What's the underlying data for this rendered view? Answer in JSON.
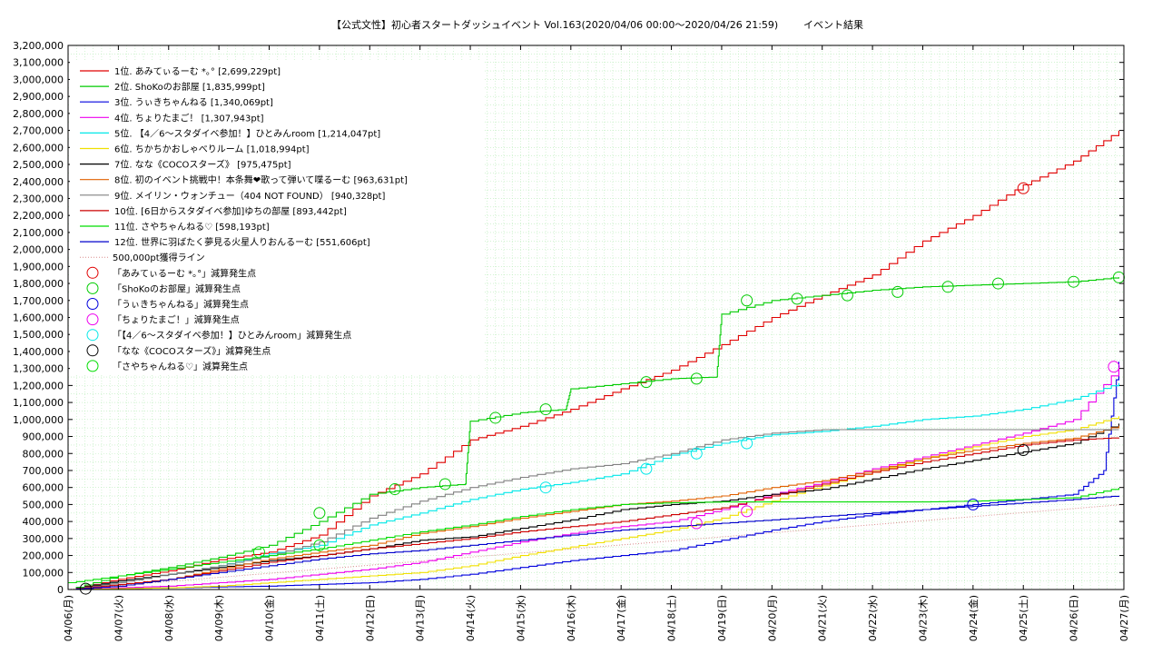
{
  "chart_data": {
    "type": "line",
    "title": "【公式文性】初心者スタートダッシュイベント Vol.163(2020/04/06 00:00〜2020/04/26 21:59)",
    "title_suffix": "イベント結果",
    "ylim": [
      0,
      3200000
    ],
    "y_step": 100000,
    "y_tick_labels": [
      "0",
      "100,000",
      "200,000",
      "300,000",
      "400,000",
      "500,000",
      "600,000",
      "700,000",
      "800,000",
      "900,000",
      "1,000,000",
      "1,100,000",
      "1,200,000",
      "1,300,000",
      "1,400,000",
      "1,500,000",
      "1,600,000",
      "1,700,000",
      "1,800,000",
      "1,900,000",
      "2,000,000",
      "2,100,000",
      "2,200,000",
      "2,300,000",
      "2,400,000",
      "2,500,000",
      "2,600,000",
      "2,700,000",
      "2,800,000",
      "2,900,000",
      "3,000,000",
      "3,100,000",
      "3,200,000"
    ],
    "xlim": [
      0,
      21
    ],
    "x_tick_labels": [
      "04/06(月)",
      "04/07(火)",
      "04/08(水)",
      "04/09(木)",
      "04/10(金)",
      "04/11(土)",
      "04/12(日)",
      "04/13(月)",
      "04/14(火)",
      "04/15(水)",
      "04/16(木)",
      "04/17(金)",
      "04/18(土)",
      "04/19(日)",
      "04/20(月)",
      "04/21(火)",
      "04/22(水)",
      "04/23(木)",
      "04/24(金)",
      "04/25(土)",
      "04/26(日)",
      "04/27(月)"
    ],
    "grid": true,
    "legend_position": "top-left",
    "reference_line": {
      "name": "500,000pt獲得ライン",
      "value_at_end": 500000,
      "color": "#d98c8c"
    },
    "series": [
      {
        "name": "1位. あみてぃるーむ *｡° [2,699,229pt]",
        "color": "#e00000",
        "x": [
          0,
          1,
          2,
          3,
          4,
          5,
          6,
          7,
          8,
          9,
          10,
          11,
          12,
          13,
          14,
          15,
          16,
          17,
          18,
          19,
          20,
          20.9
        ],
        "y": [
          0,
          60000,
          110000,
          175000,
          220000,
          320000,
          550000,
          680000,
          880000,
          960000,
          1060000,
          1180000,
          1290000,
          1440000,
          1600000,
          1730000,
          1850000,
          2050000,
          2200000,
          2380000,
          2520000,
          2699229
        ]
      },
      {
        "name": "2位. ShoKoのお部屋 [1,835,999pt]",
        "color": "#00cc00",
        "x": [
          0,
          1,
          2,
          3,
          4,
          5,
          6,
          7,
          7.9,
          8,
          9,
          9.9,
          10,
          11,
          12,
          12.9,
          13,
          14,
          15,
          16,
          17,
          18,
          19,
          20,
          20.9
        ],
        "y": [
          0,
          80000,
          130000,
          190000,
          260000,
          400000,
          560000,
          600000,
          620000,
          990000,
          1040000,
          1060000,
          1180000,
          1210000,
          1240000,
          1250000,
          1620000,
          1700000,
          1730000,
          1760000,
          1780000,
          1790000,
          1800000,
          1810000,
          1835999
        ]
      },
      {
        "name": "3位. うぃきちゃんねる [1,340,069pt]",
        "color": "#0000dd",
        "x": [
          0,
          1,
          2,
          3,
          4,
          5,
          6,
          7,
          8,
          9,
          10,
          11,
          12,
          13,
          14,
          15,
          16,
          17,
          18,
          19,
          20,
          20.6,
          20.9
        ],
        "y": [
          0,
          5000,
          10000,
          15000,
          20000,
          30000,
          40000,
          60000,
          90000,
          130000,
          170000,
          200000,
          230000,
          290000,
          350000,
          400000,
          440000,
          470000,
          500000,
          530000,
          560000,
          700000,
          1340069
        ]
      },
      {
        "name": "4位. ちょりたまご！ [1,307,943pt]",
        "color": "#ee00ee",
        "x": [
          0,
          1,
          2,
          3,
          4,
          5,
          6,
          7,
          8,
          9,
          10,
          11,
          12,
          13,
          14,
          15,
          16,
          17,
          18,
          19,
          20,
          20.9
        ],
        "y": [
          0,
          10000,
          20000,
          40000,
          60000,
          90000,
          120000,
          160000,
          220000,
          280000,
          330000,
          370000,
          400000,
          470000,
          560000,
          630000,
          710000,
          780000,
          850000,
          920000,
          1000000,
          1307943
        ]
      },
      {
        "name": "5位. 【4／6〜スタダイベ参加！】ひとみんroom [1,214,047pt]",
        "color": "#00e8e8",
        "x": [
          0,
          1,
          2,
          3,
          4,
          5,
          6,
          7,
          8,
          9,
          10,
          11,
          12,
          13,
          14,
          15,
          16,
          17,
          18,
          19,
          20,
          20.9
        ],
        "y": [
          0,
          50000,
          90000,
          140000,
          210000,
          260000,
          380000,
          450000,
          530000,
          590000,
          630000,
          680000,
          790000,
          860000,
          910000,
          930000,
          960000,
          1000000,
          1020000,
          1060000,
          1120000,
          1214047
        ]
      },
      {
        "name": "6位. ちかちかおしゃべりルーム [1,018,994pt]",
        "color": "#f0e000",
        "x": [
          0,
          1,
          2,
          3,
          4,
          5,
          6,
          7,
          8,
          9,
          10,
          11,
          12,
          13,
          14,
          15,
          16,
          17,
          18,
          19,
          20,
          20.9
        ],
        "y": [
          0,
          5000,
          10000,
          20000,
          40000,
          60000,
          80000,
          100000,
          140000,
          200000,
          250000,
          300000,
          350000,
          420000,
          520000,
          610000,
          690000,
          770000,
          840000,
          900000,
          940000,
          1018994
        ]
      },
      {
        "name": "7位. なな《COCOスターズ》 [975,475pt]",
        "color": "#000000",
        "x": [
          0,
          1,
          2,
          3,
          4,
          5,
          6,
          7,
          8,
          9,
          10,
          11,
          12,
          13,
          14,
          15,
          16,
          17,
          18,
          19,
          20,
          20.9
        ],
        "y": [
          0,
          50000,
          90000,
          130000,
          170000,
          200000,
          240000,
          290000,
          310000,
          360000,
          410000,
          470000,
          500000,
          520000,
          560000,
          590000,
          650000,
          710000,
          760000,
          810000,
          860000,
          975475
        ]
      },
      {
        "name": "8位. 初のイベント挑戦中！本条舞❤歌って弾いて喋るーむ [963,631pt]",
        "color": "#e06000",
        "x": [
          0,
          1,
          2,
          3,
          4,
          5,
          6,
          7,
          8,
          9,
          10,
          11,
          12,
          13,
          14,
          15,
          16,
          17,
          18,
          19,
          20,
          20.9
        ],
        "y": [
          0,
          20000,
          60000,
          120000,
          180000,
          220000,
          260000,
          330000,
          370000,
          420000,
          460000,
          500000,
          520000,
          550000,
          600000,
          640000,
          700000,
          770000,
          820000,
          860000,
          890000,
          963631
        ]
      },
      {
        "name": "9位. メイリン・ウォンチュー（404 NOT FOUND） [940,328pt]",
        "color": "#808080",
        "x": [
          0,
          1,
          2,
          3,
          4,
          5,
          6,
          7,
          8,
          9,
          10,
          11,
          12,
          13,
          14,
          15,
          16,
          17,
          18,
          19,
          20,
          20.9
        ],
        "y": [
          0,
          40000,
          90000,
          140000,
          200000,
          280000,
          420000,
          520000,
          600000,
          660000,
          710000,
          740000,
          800000,
          880000,
          920000,
          940000,
          940000,
          940000,
          940000,
          940000,
          940000,
          940328
        ]
      },
      {
        "name": "10位. [6日からスタダイベ参加]ゆちの部屋 [893,442pt]",
        "color": "#cc0000",
        "x": [
          0,
          1,
          2,
          3,
          4,
          5,
          6,
          7,
          8,
          9,
          10,
          11,
          12,
          13,
          14,
          15,
          16,
          17,
          18,
          19,
          20,
          20.9
        ],
        "y": [
          0,
          30000,
          60000,
          110000,
          160000,
          200000,
          240000,
          270000,
          300000,
          340000,
          370000,
          400000,
          440000,
          480000,
          550000,
          620000,
          690000,
          750000,
          800000,
          850000,
          880000,
          893442
        ]
      },
      {
        "name": "11位. さやちゃんねる♡ [598,193pt]",
        "color": "#00dd00",
        "x": [
          0,
          1,
          2,
          3,
          4,
          5,
          6,
          7,
          8,
          9,
          10,
          11,
          12,
          13,
          14,
          15,
          16,
          17,
          18,
          19,
          20,
          20.9
        ],
        "y": [
          40000,
          80000,
          120000,
          160000,
          200000,
          240000,
          290000,
          340000,
          380000,
          430000,
          470000,
          500000,
          510000,
          515000,
          515000,
          515000,
          515000,
          515000,
          520000,
          530000,
          540000,
          598193
        ]
      },
      {
        "name": "12位. 世界に羽ばたく夢見る火星人りおんるーむ [551,606pt]",
        "color": "#0000cc",
        "x": [
          0,
          1,
          2,
          3,
          4,
          5,
          6,
          7,
          8,
          9,
          10,
          11,
          12,
          13,
          14,
          15,
          16,
          17,
          18,
          19,
          20,
          20.9
        ],
        "y": [
          0,
          20000,
          60000,
          100000,
          140000,
          180000,
          210000,
          230000,
          260000,
          290000,
          320000,
          350000,
          370000,
          390000,
          410000,
          430000,
          450000,
          470000,
          490000,
          510000,
          530000,
          551606
        ]
      }
    ],
    "penalty_markers": [
      {
        "name": "「あみてぃるーむ *｡°」減算発生点",
        "color": "#e00000",
        "points": [
          [
            19.0,
            2360000
          ]
        ]
      },
      {
        "name": "「ShoKoのお部屋」減算発生点",
        "color": "#00cc00",
        "points": [
          [
            5.0,
            450000
          ],
          [
            6.5,
            590000
          ],
          [
            7.5,
            620000
          ],
          [
            8.5,
            1010000
          ],
          [
            9.5,
            1060000
          ],
          [
            11.5,
            1220000
          ],
          [
            12.5,
            1240000
          ],
          [
            13.5,
            1700000
          ],
          [
            14.5,
            1710000
          ],
          [
            15.5,
            1730000
          ],
          [
            16.5,
            1750000
          ],
          [
            17.5,
            1780000
          ],
          [
            18.5,
            1800000
          ],
          [
            20.0,
            1810000
          ],
          [
            20.9,
            1836000
          ]
        ]
      },
      {
        "name": "「うぃきちゃんねる」減算発生点",
        "color": "#0000dd",
        "points": [
          [
            18.0,
            500000
          ]
        ]
      },
      {
        "name": "「ちょりたまご！」減算発生点",
        "color": "#ee00ee",
        "points": [
          [
            12.5,
            390000
          ],
          [
            13.5,
            460000
          ],
          [
            20.8,
            1310000
          ]
        ]
      },
      {
        "name": "「【4／6〜スタダイベ参加！】ひとみんroom」減算発生点",
        "color": "#00e8e8",
        "points": [
          [
            9.5,
            600000
          ],
          [
            11.5,
            710000
          ],
          [
            12.5,
            800000
          ],
          [
            13.5,
            860000
          ]
        ]
      },
      {
        "name": "「なな《COCOスターズ》」減算発生点",
        "color": "#000000",
        "points": [
          [
            0.35,
            5000
          ],
          [
            19.0,
            820000
          ]
        ]
      },
      {
        "name": "「さやちゃんねる♡」減算発生点",
        "color": "#00dd00",
        "points": [
          [
            3.8,
            220000
          ],
          [
            5.0,
            260000
          ]
        ]
      }
    ]
  }
}
